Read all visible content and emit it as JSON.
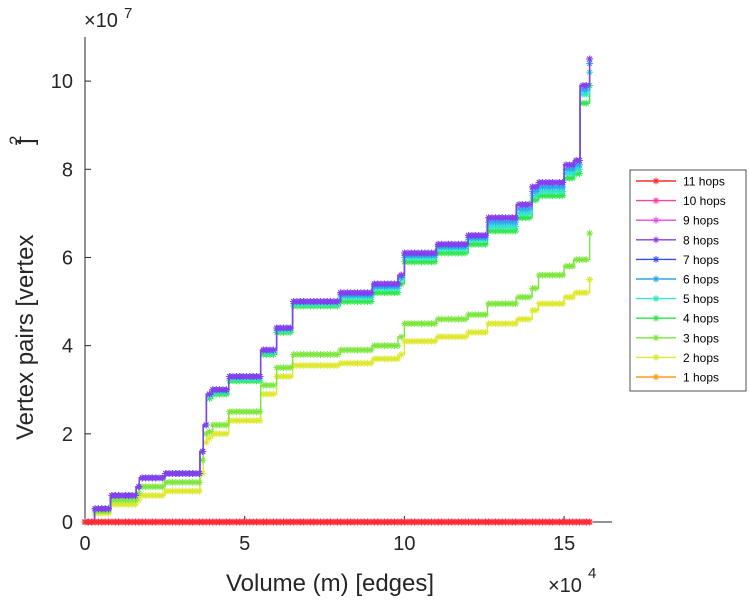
{
  "chart_data": {
    "type": "line",
    "title": "",
    "xlabel": "Volume (m) [edges]",
    "ylabel_main": "Vertex pairs [vertex",
    "ylabel_sup": "2",
    "ylabel_close": "]",
    "x_multiplier": "×10",
    "x_exponent": "4",
    "y_multiplier": "×10",
    "y_exponent": "7",
    "xlim": [
      0,
      16.5
    ],
    "ylim": [
      0,
      11
    ],
    "xticks": [
      0,
      5,
      10,
      15
    ],
    "xtick_labels": [
      "0",
      "5",
      "10",
      "15"
    ],
    "yticks": [
      0,
      2,
      4,
      6,
      8,
      10
    ],
    "ytick_labels": [
      "0",
      "2",
      "4",
      "6",
      "8",
      "10"
    ],
    "legend_position": "outside-right",
    "series": [
      {
        "name": "11 hops",
        "color": "#ff2a2a",
        "x": [
          0,
          15.8
        ],
        "y": [
          0,
          0
        ]
      },
      {
        "name": "10 hops",
        "color": "#ff3fa3",
        "x": [
          0,
          15.8
        ],
        "y": [
          0,
          0
        ]
      },
      {
        "name": "9 hops",
        "color": "#ee44ee",
        "x": [
          0,
          15.8
        ],
        "y": [
          0,
          0
        ]
      },
      {
        "name": "8 hops",
        "color": "#8a3cee",
        "x": [
          0,
          0.3,
          0.8,
          1.6,
          1.7,
          2.5,
          3.6,
          3.7,
          3.8,
          4.0,
          4.5,
          5.5,
          6.0,
          6.5,
          8.0,
          9.0,
          9.8,
          10.0,
          11.0,
          12.0,
          12.6,
          13.5,
          14.0,
          14.2,
          15.0,
          15.3,
          15.5,
          15.8
        ],
        "y": [
          0,
          0.3,
          0.6,
          0.8,
          1.0,
          1.1,
          1.6,
          2.2,
          2.9,
          3.0,
          3.3,
          3.9,
          4.4,
          5.0,
          5.2,
          5.4,
          5.6,
          6.1,
          6.3,
          6.5,
          6.9,
          7.2,
          7.6,
          7.7,
          8.1,
          8.2,
          9.9,
          10.5
        ]
      },
      {
        "name": "7 hops",
        "color": "#2f4cff",
        "x": [
          0,
          0.3,
          0.8,
          1.6,
          1.7,
          2.5,
          3.6,
          3.7,
          3.8,
          4.0,
          4.5,
          5.5,
          6.0,
          6.5,
          8.0,
          9.0,
          9.8,
          10.0,
          11.0,
          12.0,
          12.6,
          13.5,
          14.0,
          14.2,
          15.0,
          15.3,
          15.5,
          15.8
        ],
        "y": [
          0,
          0.3,
          0.6,
          0.8,
          1.0,
          1.1,
          1.6,
          2.2,
          2.9,
          3.0,
          3.3,
          3.9,
          4.4,
          5.0,
          5.2,
          5.4,
          5.6,
          6.1,
          6.3,
          6.5,
          6.9,
          7.2,
          7.6,
          7.7,
          8.1,
          8.2,
          9.9,
          10.5
        ]
      },
      {
        "name": "6 hops",
        "color": "#2aa6ee",
        "x": [
          0,
          0.3,
          0.8,
          1.6,
          1.7,
          2.5,
          3.6,
          3.7,
          3.8,
          4.0,
          4.5,
          5.5,
          6.0,
          6.5,
          8.0,
          9.0,
          9.8,
          10.0,
          11.0,
          12.0,
          12.6,
          13.5,
          14.0,
          14.2,
          15.0,
          15.3,
          15.5,
          15.8
        ],
        "y": [
          0,
          0.3,
          0.6,
          0.8,
          1.0,
          1.1,
          1.6,
          2.2,
          2.9,
          3.0,
          3.3,
          3.9,
          4.4,
          5.0,
          5.15,
          5.35,
          5.55,
          6.05,
          6.25,
          6.45,
          6.8,
          7.1,
          7.5,
          7.6,
          8.0,
          8.1,
          9.8,
          10.4
        ]
      },
      {
        "name": "5 hops",
        "color": "#2ee6c8",
        "x": [
          0,
          0.3,
          0.8,
          1.6,
          1.7,
          2.5,
          3.6,
          3.7,
          3.8,
          4.0,
          4.5,
          5.5,
          6.0,
          6.5,
          8.0,
          9.0,
          9.8,
          10.0,
          11.0,
          12.0,
          12.6,
          13.5,
          14.0,
          14.2,
          15.0,
          15.3,
          15.5,
          15.8
        ],
        "y": [
          0,
          0.3,
          0.6,
          0.8,
          1.0,
          1.1,
          1.6,
          2.2,
          2.85,
          2.95,
          3.25,
          3.85,
          4.35,
          4.95,
          5.1,
          5.3,
          5.5,
          6.0,
          6.2,
          6.4,
          6.7,
          7.0,
          7.4,
          7.5,
          7.9,
          8.0,
          9.7,
          10.2
        ]
      },
      {
        "name": "4 hops",
        "color": "#2ee64a",
        "x": [
          0,
          0.3,
          0.8,
          1.6,
          1.7,
          2.5,
          3.6,
          3.7,
          3.8,
          4.0,
          4.5,
          5.5,
          6.0,
          6.5,
          8.0,
          9.0,
          9.8,
          10.0,
          11.0,
          12.0,
          12.6,
          13.5,
          14.0,
          14.2,
          15.0,
          15.3,
          15.5,
          15.8
        ],
        "y": [
          0,
          0.3,
          0.6,
          0.8,
          1.0,
          1.1,
          1.6,
          2.2,
          2.8,
          2.9,
          3.2,
          3.8,
          4.3,
          4.9,
          5.0,
          5.2,
          5.4,
          5.9,
          6.1,
          6.3,
          6.6,
          6.9,
          7.3,
          7.4,
          7.8,
          7.9,
          9.5,
          9.9
        ]
      },
      {
        "name": "3 hops",
        "color": "#7be63a",
        "x": [
          0,
          0.3,
          0.8,
          1.6,
          1.7,
          2.5,
          3.6,
          3.7,
          3.8,
          4.0,
          4.5,
          5.5,
          6.0,
          6.5,
          8.0,
          9.0,
          9.8,
          10.0,
          11.0,
          12.0,
          12.6,
          13.5,
          14.0,
          14.2,
          15.0,
          15.3,
          15.8
        ],
        "y": [
          0,
          0.25,
          0.5,
          0.65,
          0.8,
          0.9,
          1.4,
          2.0,
          2.05,
          2.2,
          2.5,
          3.1,
          3.5,
          3.8,
          3.9,
          4.0,
          4.2,
          4.5,
          4.6,
          4.7,
          4.95,
          5.1,
          5.3,
          5.6,
          5.8,
          5.95,
          6.55
        ]
      },
      {
        "name": "2 hops",
        "color": "#dde82c",
        "x": [
          0,
          0.3,
          0.8,
          1.6,
          1.7,
          2.5,
          3.6,
          3.7,
          3.8,
          4.0,
          4.5,
          5.5,
          6.0,
          6.5,
          8.0,
          9.0,
          9.8,
          10.0,
          11.0,
          12.0,
          12.6,
          13.5,
          14.0,
          14.2,
          15.0,
          15.3,
          15.8
        ],
        "y": [
          0,
          0.2,
          0.4,
          0.5,
          0.6,
          0.7,
          1.1,
          1.8,
          1.9,
          2.0,
          2.3,
          2.9,
          3.3,
          3.55,
          3.6,
          3.7,
          3.8,
          4.1,
          4.2,
          4.3,
          4.5,
          4.6,
          4.8,
          4.95,
          5.1,
          5.2,
          5.5
        ]
      },
      {
        "name": "1 hops",
        "color": "#ff9a1a",
        "x": [
          0,
          15.8
        ],
        "y": [
          0,
          0
        ]
      }
    ]
  }
}
